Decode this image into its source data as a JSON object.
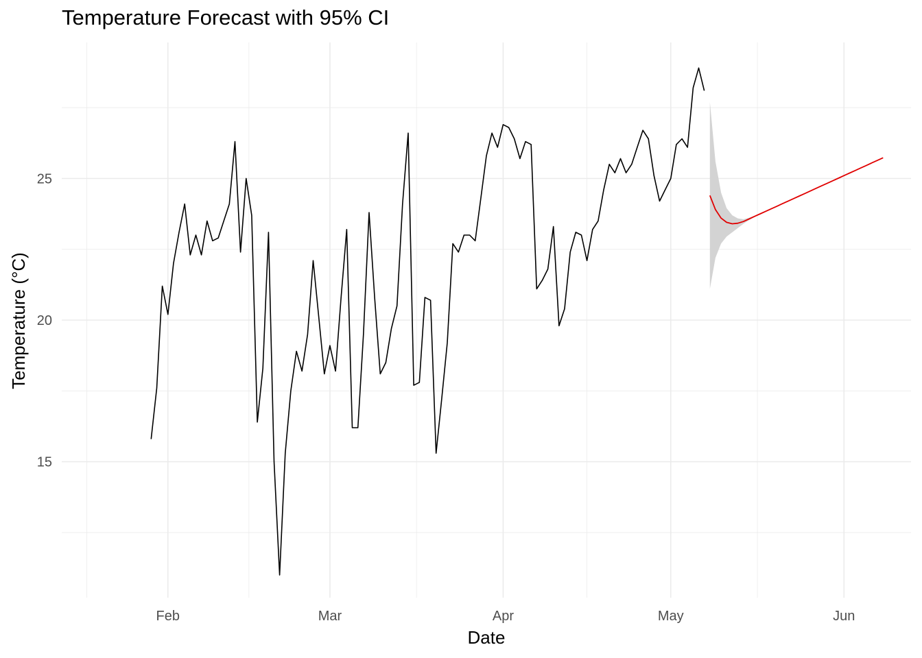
{
  "chart_data": {
    "type": "line",
    "title": "Temperature Forecast with 95% CI",
    "xlabel": "Date",
    "ylabel": "Temperature (°C)",
    "ylim": [
      10.2,
      29.8
    ],
    "xlim": [
      "2024-01-13",
      "2024-06-13"
    ],
    "grid": true,
    "legend": "none",
    "x_ticks": [
      {
        "date": "2024-02-01",
        "label": "Feb"
      },
      {
        "date": "2024-03-01",
        "label": "Mar"
      },
      {
        "date": "2024-04-01",
        "label": "Apr"
      },
      {
        "date": "2024-05-01",
        "label": "May"
      },
      {
        "date": "2024-06-01",
        "label": "Jun"
      }
    ],
    "y_ticks": [
      15,
      20,
      25
    ],
    "colors": {
      "observed": "#000000",
      "forecast": "#e00000",
      "ci_band": "#d3d3d3",
      "grid": "#ebebeb"
    },
    "observed": {
      "start": "2024-01-29",
      "values": [
        15.8,
        17.6,
        21.2,
        20.2,
        22.0,
        23.1,
        24.1,
        22.3,
        23.0,
        22.3,
        23.5,
        22.8,
        22.9,
        23.5,
        24.1,
        26.3,
        22.4,
        25.0,
        23.7,
        16.4,
        18.3,
        23.1,
        15.0,
        11.0,
        15.3,
        17.5,
        18.9,
        18.2,
        19.5,
        22.1,
        20.1,
        18.1,
        19.1,
        18.2,
        20.8,
        23.2,
        16.2,
        16.2,
        19.5,
        23.8,
        20.8,
        18.1,
        18.5,
        19.7,
        20.5,
        24.1,
        26.6,
        17.7,
        17.8,
        20.8,
        20.7,
        15.3,
        17.2,
        19.2,
        22.7,
        22.4,
        23.0,
        23.0,
        22.8,
        24.3,
        25.8,
        26.6,
        26.1,
        26.9,
        26.8,
        26.4,
        25.7,
        26.3,
        26.2,
        21.1,
        21.4,
        21.8,
        23.3,
        19.8,
        20.4,
        22.4,
        23.1,
        23.0,
        22.1,
        23.2,
        23.5,
        24.6,
        25.5,
        25.2,
        25.7,
        25.2,
        25.5,
        26.1,
        26.7,
        26.4,
        25.1,
        24.2,
        24.6,
        25.0,
        26.2,
        26.4,
        26.1,
        28.2,
        28.9,
        28.1
      ]
    },
    "forecast": {
      "start": "2024-05-08",
      "mean": [
        24.4,
        23.9,
        23.6,
        23.45,
        23.4,
        23.42,
        23.48,
        23.57,
        23.66,
        23.75,
        23.84,
        23.93,
        24.02,
        24.11,
        24.2,
        24.29,
        24.38,
        24.47,
        24.56,
        24.65,
        24.74,
        24.83,
        24.92,
        25.01,
        25.1,
        25.19,
        25.28,
        25.37,
        25.46,
        25.55,
        25.64,
        25.73
      ],
      "lower": [
        21.1,
        22.2,
        22.7,
        22.95,
        23.1,
        23.25,
        23.4,
        23.53,
        23.64,
        23.74,
        23.83,
        23.93,
        24.02,
        24.11,
        24.2,
        24.29,
        24.38,
        24.47,
        24.56,
        24.65,
        24.74,
        24.83,
        24.92,
        25.01,
        25.1,
        25.19,
        25.28,
        25.37,
        25.46,
        25.55,
        25.64,
        25.73
      ],
      "upper": [
        27.7,
        25.6,
        24.5,
        23.95,
        23.7,
        23.59,
        23.56,
        23.61,
        23.68,
        23.76,
        23.85,
        23.93,
        24.02,
        24.11,
        24.2,
        24.29,
        24.38,
        24.47,
        24.56,
        24.65,
        24.74,
        24.83,
        24.92,
        25.01,
        25.1,
        25.19,
        25.28,
        25.37,
        25.46,
        25.55,
        25.64,
        25.73
      ]
    }
  }
}
